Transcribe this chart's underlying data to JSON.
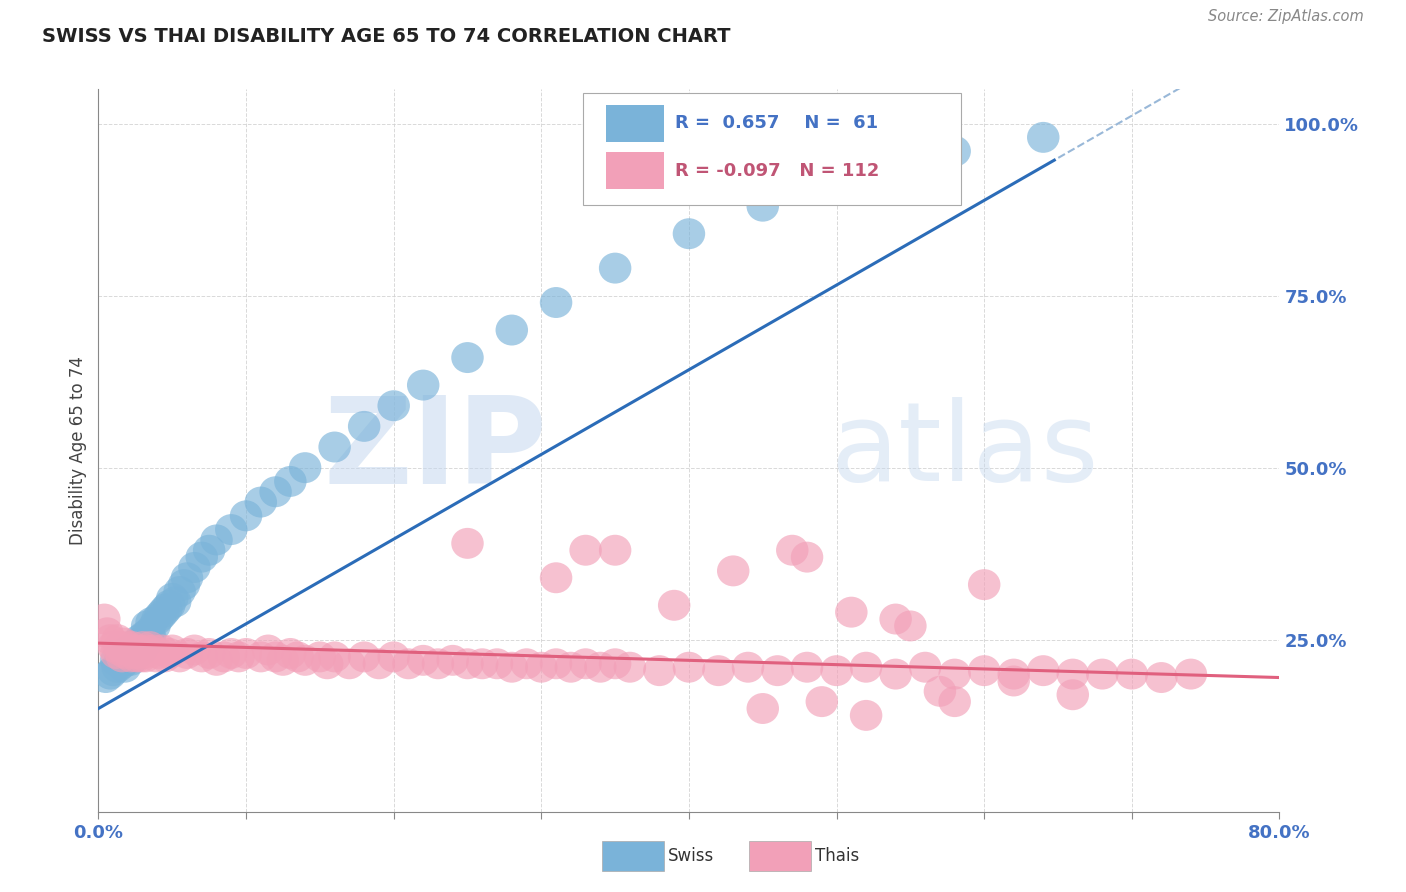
{
  "title": "SWISS VS THAI DISABILITY AGE 65 TO 74 CORRELATION CHART",
  "source": "Source: ZipAtlas.com",
  "ylabel": "Disability Age 65 to 74",
  "xlim": [
    0.0,
    0.8
  ],
  "ylim": [
    0.0,
    1.05
  ],
  "xtick_positions": [
    0.0,
    0.1,
    0.2,
    0.3,
    0.4,
    0.5,
    0.6,
    0.7,
    0.8
  ],
  "xtick_labels": [
    "0.0%",
    "",
    "",
    "",
    "",
    "",
    "",
    "",
    "80.0%"
  ],
  "ytick_positions": [
    0.25,
    0.5,
    0.75,
    1.0
  ],
  "ytick_labels": [
    "25.0%",
    "50.0%",
    "75.0%",
    "100.0%"
  ],
  "swiss_color": "#7ab3d9",
  "thai_color": "#f2a0b8",
  "swiss_R": 0.657,
  "swiss_N": 61,
  "thai_R": -0.097,
  "thai_N": 112,
  "swiss_line_color": "#2b6cb8",
  "thai_line_color": "#e0607e",
  "swiss_dash_color": "#99b8d8",
  "grid_color": "#d0d0d0",
  "background_color": "#ffffff",
  "tick_color": "#4472c4",
  "watermark_color": "#d0dff0",
  "swiss_x": [
    0.005,
    0.008,
    0.01,
    0.012,
    0.013,
    0.015,
    0.016,
    0.017,
    0.018,
    0.019,
    0.02,
    0.021,
    0.022,
    0.023,
    0.024,
    0.025,
    0.026,
    0.027,
    0.028,
    0.029,
    0.03,
    0.031,
    0.032,
    0.033,
    0.034,
    0.035,
    0.036,
    0.038,
    0.04,
    0.042,
    0.044,
    0.046,
    0.048,
    0.05,
    0.052,
    0.055,
    0.058,
    0.06,
    0.065,
    0.07,
    0.075,
    0.08,
    0.09,
    0.1,
    0.11,
    0.12,
    0.13,
    0.14,
    0.16,
    0.18,
    0.2,
    0.22,
    0.25,
    0.28,
    0.31,
    0.35,
    0.4,
    0.45,
    0.5,
    0.58,
    0.64
  ],
  "swiss_y": [
    0.195,
    0.2,
    0.205,
    0.22,
    0.21,
    0.225,
    0.215,
    0.23,
    0.21,
    0.22,
    0.225,
    0.235,
    0.22,
    0.23,
    0.235,
    0.24,
    0.23,
    0.245,
    0.25,
    0.235,
    0.24,
    0.255,
    0.245,
    0.27,
    0.26,
    0.255,
    0.275,
    0.27,
    0.28,
    0.285,
    0.29,
    0.295,
    0.3,
    0.31,
    0.305,
    0.32,
    0.33,
    0.34,
    0.355,
    0.37,
    0.38,
    0.395,
    0.41,
    0.43,
    0.45,
    0.465,
    0.48,
    0.5,
    0.53,
    0.56,
    0.59,
    0.62,
    0.66,
    0.7,
    0.74,
    0.79,
    0.84,
    0.88,
    0.92,
    0.96,
    0.98
  ],
  "thai_x": [
    0.004,
    0.006,
    0.008,
    0.01,
    0.012,
    0.013,
    0.014,
    0.015,
    0.016,
    0.017,
    0.018,
    0.019,
    0.02,
    0.021,
    0.022,
    0.023,
    0.024,
    0.025,
    0.026,
    0.027,
    0.028,
    0.029,
    0.03,
    0.031,
    0.032,
    0.033,
    0.035,
    0.037,
    0.039,
    0.041,
    0.043,
    0.045,
    0.048,
    0.05,
    0.055,
    0.06,
    0.065,
    0.07,
    0.075,
    0.08,
    0.085,
    0.09,
    0.095,
    0.1,
    0.11,
    0.115,
    0.12,
    0.125,
    0.13,
    0.135,
    0.14,
    0.15,
    0.155,
    0.16,
    0.17,
    0.18,
    0.19,
    0.2,
    0.21,
    0.22,
    0.23,
    0.24,
    0.25,
    0.26,
    0.27,
    0.28,
    0.29,
    0.3,
    0.31,
    0.32,
    0.33,
    0.34,
    0.35,
    0.36,
    0.38,
    0.4,
    0.42,
    0.44,
    0.46,
    0.48,
    0.5,
    0.52,
    0.54,
    0.56,
    0.58,
    0.6,
    0.62,
    0.64,
    0.66,
    0.68,
    0.7,
    0.72,
    0.74,
    0.6,
    0.43,
    0.39,
    0.35,
    0.55,
    0.47,
    0.51,
    0.58,
    0.33,
    0.45,
    0.66,
    0.49,
    0.52,
    0.25,
    0.31,
    0.54,
    0.57,
    0.48,
    0.62
  ],
  "thai_y": [
    0.28,
    0.26,
    0.25,
    0.24,
    0.23,
    0.25,
    0.235,
    0.24,
    0.225,
    0.245,
    0.23,
    0.235,
    0.24,
    0.235,
    0.225,
    0.24,
    0.23,
    0.235,
    0.225,
    0.23,
    0.235,
    0.225,
    0.24,
    0.23,
    0.225,
    0.235,
    0.24,
    0.235,
    0.225,
    0.23,
    0.235,
    0.225,
    0.23,
    0.235,
    0.225,
    0.23,
    0.235,
    0.225,
    0.23,
    0.22,
    0.225,
    0.23,
    0.225,
    0.23,
    0.225,
    0.235,
    0.225,
    0.22,
    0.23,
    0.225,
    0.22,
    0.225,
    0.215,
    0.225,
    0.215,
    0.225,
    0.215,
    0.225,
    0.215,
    0.22,
    0.215,
    0.22,
    0.215,
    0.215,
    0.215,
    0.21,
    0.215,
    0.21,
    0.215,
    0.21,
    0.215,
    0.21,
    0.215,
    0.21,
    0.205,
    0.21,
    0.205,
    0.21,
    0.205,
    0.21,
    0.205,
    0.21,
    0.2,
    0.21,
    0.2,
    0.205,
    0.2,
    0.205,
    0.2,
    0.2,
    0.2,
    0.195,
    0.2,
    0.33,
    0.35,
    0.3,
    0.38,
    0.27,
    0.38,
    0.29,
    0.16,
    0.38,
    0.15,
    0.17,
    0.16,
    0.14,
    0.39,
    0.34,
    0.28,
    0.175,
    0.37,
    0.19
  ]
}
